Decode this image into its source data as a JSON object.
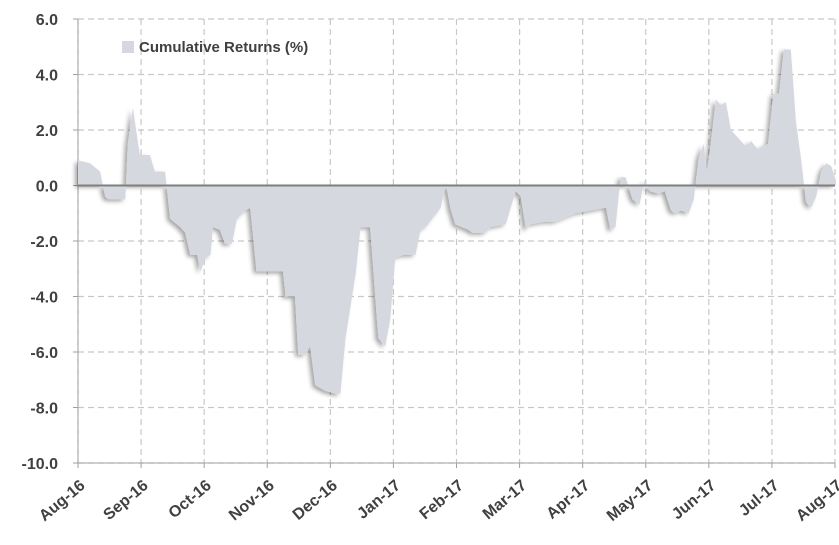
{
  "chart_data": {
    "type": "area",
    "grid": true,
    "legend": "upper left",
    "xlim": [
      0,
      12
    ],
    "xticks": [
      {
        "value": 0,
        "label": "Aug-16"
      },
      {
        "value": 1,
        "label": "Sep-16"
      },
      {
        "value": 2,
        "label": "Oct-16"
      },
      {
        "value": 3,
        "label": "Nov-16"
      },
      {
        "value": 4,
        "label": "Dec-16"
      },
      {
        "value": 5,
        "label": "Jan-17"
      },
      {
        "value": 6,
        "label": "Feb-17"
      },
      {
        "value": 7,
        "label": "Mar-17"
      },
      {
        "value": 8,
        "label": "Apr-17"
      },
      {
        "value": 9,
        "label": "May-17"
      },
      {
        "value": 10,
        "label": "Jun-17"
      },
      {
        "value": 11,
        "label": "Jul-17"
      },
      {
        "value": 12,
        "label": "Aug-17"
      }
    ],
    "ylim": [
      -10,
      6
    ],
    "yticks": [
      {
        "value": -10,
        "label": "-10.0"
      },
      {
        "value": -8,
        "label": "-8.0"
      },
      {
        "value": -6,
        "label": "-6.0"
      },
      {
        "value": -4,
        "label": "-4.0"
      },
      {
        "value": -2,
        "label": "-2.0"
      },
      {
        "value": 0,
        "label": "0.0"
      },
      {
        "value": 2,
        "label": "2.0"
      },
      {
        "value": 4,
        "label": "4.0"
      },
      {
        "value": 6,
        "label": "6.0"
      }
    ],
    "x": [
      0,
      0.19,
      0.35,
      0.43,
      0.48,
      0.75,
      0.79,
      0.87,
      0.98,
      1.14,
      1.22,
      1.38,
      1.46,
      1.62,
      1.7,
      1.78,
      1.89,
      1.94,
      2.02,
      2.1,
      2.14,
      2.25,
      2.33,
      2.44,
      2.52,
      2.65,
      2.73,
      2.83,
      2.97,
      3.25,
      3.29,
      3.44,
      3.49,
      3.6,
      3.68,
      3.76,
      3.92,
      4.08,
      4.16,
      4.24,
      4.4,
      4.48,
      4.63,
      4.76,
      4.87,
      4.95,
      5.03,
      5.16,
      5.35,
      5.43,
      5.51,
      5.75,
      5.83,
      5.9,
      5.98,
      6.19,
      6.25,
      6.46,
      6.54,
      6.78,
      6.94,
      7.02,
      7.1,
      7.17,
      7.41,
      7.57,
      7.89,
      8.13,
      8.37,
      8.44,
      8.52,
      8.6,
      8.68,
      8.79,
      8.9,
      8.98,
      9.06,
      9.21,
      9.3,
      9.4,
      9.46,
      9.56,
      9.68,
      9.76,
      9.84,
      9.92,
      9.97,
      10.03,
      10.11,
      10.19,
      10.27,
      10.35,
      10.51,
      10.59,
      10.67,
      10.78,
      10.86,
      10.94,
      11.02,
      11.11,
      11.19,
      11.3,
      11.38,
      11.46,
      11.54,
      11.62,
      11.7,
      11.78,
      11.86,
      11.94,
      12.0
    ],
    "series": [
      {
        "name": "Cumulative Returns (%)",
        "color": "#d5d8de",
        "values": [
          0.9,
          0.8,
          0.5,
          -0.4,
          -0.5,
          -0.5,
          1.5,
          2.8,
          1.1,
          1.1,
          0.5,
          0.5,
          -1.2,
          -1.5,
          -1.7,
          -2.5,
          -2.5,
          -3.1,
          -2.6,
          -2.5,
          -1.5,
          -1.6,
          -2.1,
          -2.1,
          -1.2,
          -0.9,
          -0.8,
          -3.1,
          -3.1,
          -3.1,
          -4.0,
          -4.0,
          -6.1,
          -6.1,
          -5.8,
          -7.2,
          -7.4,
          -7.5,
          -7.5,
          -5.5,
          -3.2,
          -1.5,
          -1.5,
          -5.5,
          -5.8,
          -4.8,
          -2.6,
          -2.5,
          -2.5,
          -1.6,
          -1.5,
          -0.8,
          0.1,
          -0.8,
          -1.4,
          -1.6,
          -1.7,
          -1.7,
          -1.5,
          -1.4,
          -0.2,
          -0.4,
          -1.6,
          -1.4,
          -1.3,
          -1.3,
          -1.0,
          -0.9,
          -0.8,
          -1.6,
          -1.5,
          0.3,
          0.3,
          -0.5,
          -0.7,
          0.2,
          -0.2,
          -0.3,
          -0.2,
          -0.9,
          -1.0,
          -0.9,
          -1.0,
          -0.5,
          1.0,
          1.5,
          0.5,
          1.5,
          3.1,
          2.9,
          3.0,
          2.0,
          1.6,
          1.4,
          1.6,
          1.3,
          1.4,
          1.5,
          3.3,
          3.3,
          4.9,
          4.9,
          2.3,
          1.0,
          -0.6,
          -0.8,
          -0.4,
          0.5,
          0.8,
          0.7,
          0.3
        ]
      }
    ]
  }
}
